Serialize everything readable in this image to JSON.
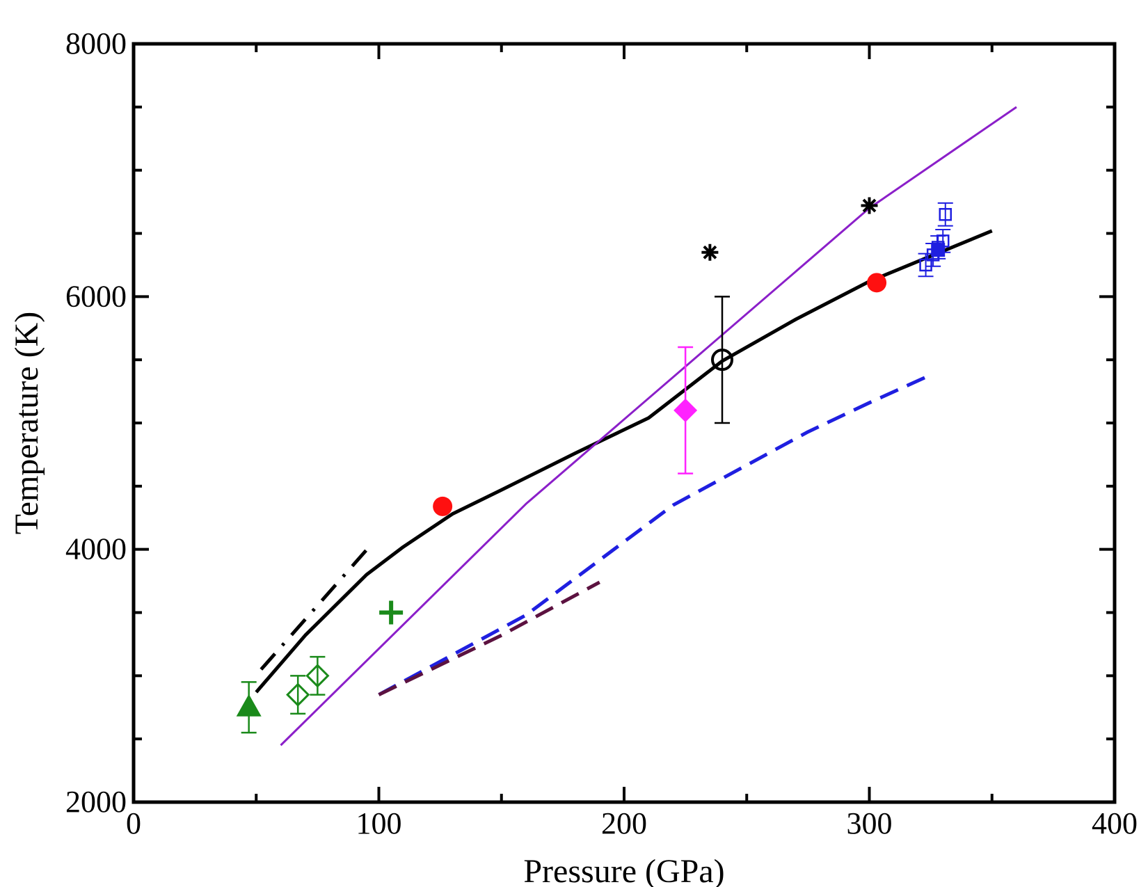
{
  "chart_data": {
    "type": "scatter",
    "title": "",
    "xlabel": "Pressure (GPa)",
    "ylabel": "Temperature (K)",
    "xlim": [
      0,
      400
    ],
    "ylim": [
      2000,
      8000
    ],
    "xticks": [
      0,
      100,
      200,
      300,
      400
    ],
    "xtick_labels": [
      "0",
      "100",
      "200",
      "300",
      "400"
    ],
    "yticks": [
      2000,
      4000,
      6000,
      8000
    ],
    "ytick_labels": [
      "2000",
      "4000",
      "6000",
      "8000"
    ],
    "x_minor_ticks": [
      50,
      150,
      250,
      350
    ],
    "y_minor_ticks": [
      2500,
      3000,
      3500,
      4500,
      5000,
      5500,
      6500,
      7000,
      7500
    ],
    "grid": false,
    "legend": "none",
    "colors": {
      "black": "#000000",
      "purple": "#8b1fc9",
      "blue": "#1f1fe0",
      "maroon": "#5c1240",
      "green": "#1a8a1a",
      "red": "#ff1010",
      "magenta": "#ff22ff"
    },
    "lines": [
      {
        "name": "black-solid-melting-curve",
        "color": "black",
        "style": "solid",
        "width": 5,
        "x": [
          50,
          70,
          95,
          110,
          130,
          150,
          180,
          210,
          240,
          270,
          300,
          325,
          350
        ],
        "y": [
          2870,
          3320,
          3800,
          4020,
          4280,
          4470,
          4760,
          5040,
          5490,
          5820,
          6120,
          6320,
          6520
        ]
      },
      {
        "name": "purple-thin-line",
        "color": "purple",
        "style": "solid",
        "width": 3,
        "x": [
          60,
          160,
          300,
          360
        ],
        "y": [
          2450,
          4360,
          6700,
          7500
        ]
      },
      {
        "name": "blue-dashed-line",
        "color": "blue",
        "style": "dashed",
        "width": 5,
        "x": [
          100,
          160,
          220,
          275,
          300,
          325
        ],
        "y": [
          2850,
          3480,
          4350,
          4930,
          5160,
          5380
        ]
      },
      {
        "name": "maroon-dashed-line",
        "color": "maroon",
        "style": "dashed",
        "width": 5,
        "x": [
          100,
          150,
          190
        ],
        "y": [
          2850,
          3320,
          3740
        ]
      },
      {
        "name": "black-dashdot-line",
        "color": "black",
        "style": "dashdot",
        "width": 5,
        "x": [
          52,
          97
        ],
        "y": [
          3050,
          4040
        ]
      }
    ],
    "points": [
      {
        "name": "red-circle-1",
        "marker": "circle-filled",
        "color": "red",
        "x": 126,
        "y": 4340
      },
      {
        "name": "red-circle-2",
        "marker": "circle-filled",
        "color": "red",
        "x": 303,
        "y": 6110
      },
      {
        "name": "black-open-circle",
        "marker": "circle-open",
        "color": "black",
        "x": 240,
        "y": 5500,
        "yerr": [
          5000,
          6000
        ]
      },
      {
        "name": "magenta-diamond",
        "marker": "diamond-filled",
        "color": "magenta",
        "x": 225,
        "y": 5100,
        "yerr": [
          4600,
          5600
        ]
      },
      {
        "name": "green-triangle",
        "marker": "triangle-filled",
        "color": "green",
        "x": 47,
        "y": 2750,
        "yerr": [
          2550,
          2950
        ]
      },
      {
        "name": "green-open-diamond-1",
        "marker": "diamond-open",
        "color": "green",
        "x": 67,
        "y": 2850,
        "yerr": [
          2700,
          3000
        ]
      },
      {
        "name": "green-open-diamond-2",
        "marker": "diamond-open",
        "color": "green",
        "x": 75,
        "y": 3000,
        "yerr": [
          2850,
          3150
        ]
      },
      {
        "name": "green-plus",
        "marker": "plus",
        "color": "green",
        "x": 105,
        "y": 3500
      },
      {
        "name": "black-asterisk-1",
        "marker": "asterisk",
        "color": "black",
        "x": 235,
        "y": 6350
      },
      {
        "name": "black-asterisk-2",
        "marker": "asterisk",
        "color": "black",
        "x": 300,
        "y": 6720
      },
      {
        "name": "blue-square-1",
        "marker": "square-open",
        "color": "blue",
        "x": 323,
        "y": 6250,
        "yerr": [
          6160,
          6340
        ]
      },
      {
        "name": "blue-square-2",
        "marker": "square-open",
        "color": "blue",
        "x": 326,
        "y": 6330,
        "yerr": [
          6240,
          6420
        ]
      },
      {
        "name": "blue-square-3",
        "marker": "square-open",
        "color": "blue",
        "x": 328,
        "y": 6390,
        "yerr": [
          6300,
          6480
        ]
      },
      {
        "name": "blue-square-4",
        "marker": "square-open",
        "color": "blue",
        "x": 330,
        "y": 6440,
        "yerr": [
          6350,
          6530
        ]
      },
      {
        "name": "blue-square-5",
        "marker": "square-open",
        "color": "blue",
        "x": 331,
        "y": 6650,
        "yerr": [
          6560,
          6740
        ]
      },
      {
        "name": "blue-square-filled",
        "marker": "square-filled",
        "color": "blue",
        "x": 328,
        "y": 6370
      }
    ]
  }
}
